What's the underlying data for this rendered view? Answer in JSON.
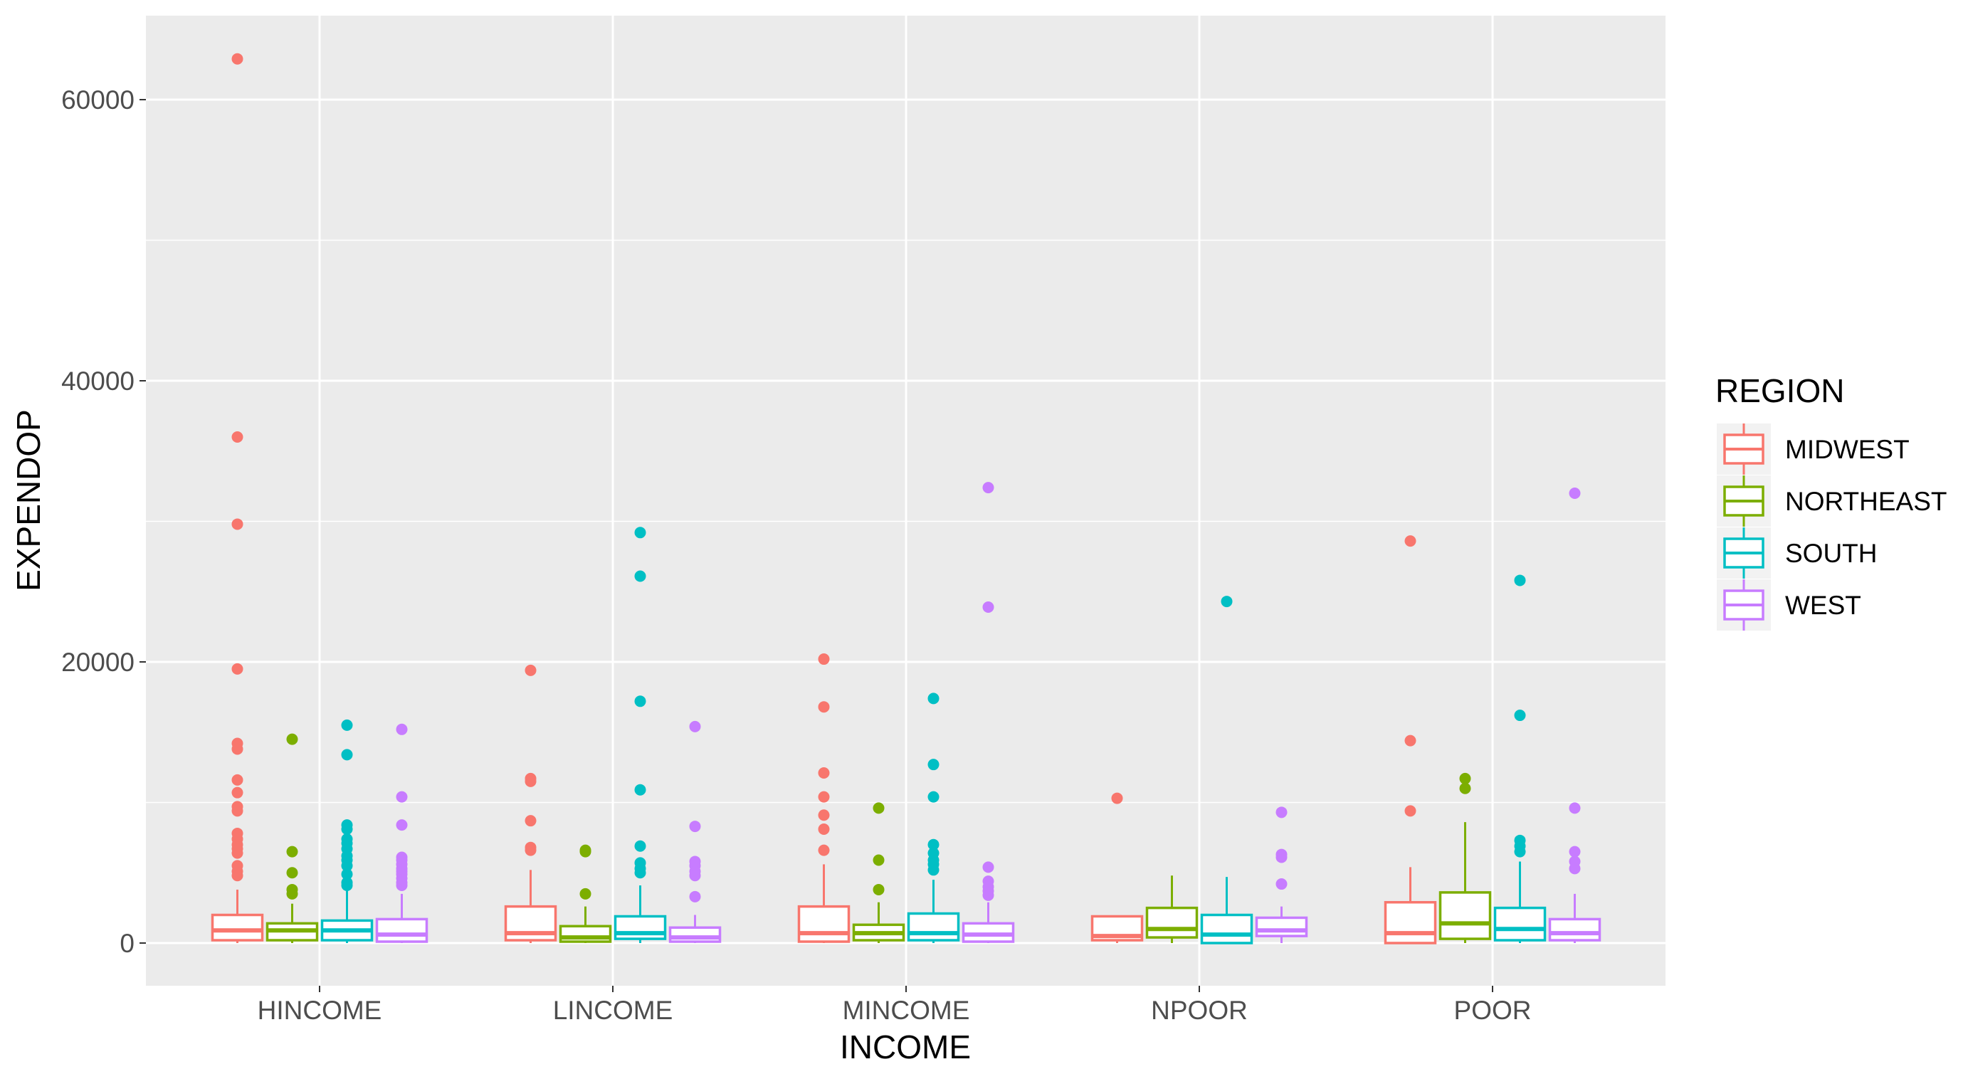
{
  "chart_data": {
    "type": "boxplot",
    "xlabel": "INCOME",
    "ylabel": "EXPENDOP",
    "ylim": [
      -3000,
      66000
    ],
    "yticks": [
      0,
      20000,
      40000,
      60000
    ],
    "ytick_labels": [
      "0",
      "20000",
      "40000",
      "60000"
    ],
    "categories": [
      "HINCOME",
      "LINCOME",
      "MINCOME",
      "NPOOR",
      "POOR"
    ],
    "legend": {
      "title": "REGION",
      "position": "right"
    },
    "grid": true,
    "series": [
      {
        "name": "MIDWEST",
        "color": "#F8766D",
        "boxes": [
          {
            "q1": 200,
            "median": 900,
            "q3": 2000,
            "lower": 0,
            "upper": 3800,
            "outliers": [
              62900,
              36000,
              29800,
              19500,
              14200,
              13800,
              11600,
              10700,
              9700,
              9400,
              7800,
              7400,
              7000,
              6700,
              6400,
              5500,
              5100,
              4800
            ]
          },
          {
            "q1": 200,
            "median": 700,
            "q3": 2600,
            "lower": 0,
            "upper": 5200,
            "outliers": [
              19400,
              11700,
              11500,
              8700,
              6800,
              6600
            ]
          },
          {
            "q1": 100,
            "median": 700,
            "q3": 2600,
            "lower": 0,
            "upper": 5600,
            "outliers": [
              20200,
              16800,
              12100,
              10400,
              9100,
              8100,
              6600
            ]
          },
          {
            "q1": 200,
            "median": 500,
            "q3": 1900,
            "lower": 0,
            "upper": 1900,
            "outliers": [
              10300
            ]
          },
          {
            "q1": 0,
            "median": 700,
            "q3": 2900,
            "lower": 0,
            "upper": 5400,
            "outliers": [
              28600,
              14400,
              9400
            ]
          }
        ]
      },
      {
        "name": "NORTHEAST",
        "color": "#7CAE00",
        "boxes": [
          {
            "q1": 200,
            "median": 900,
            "q3": 1400,
            "lower": 0,
            "upper": 2800,
            "outliers": [
              14500,
              6500,
              5000,
              3800,
              3500
            ]
          },
          {
            "q1": 100,
            "median": 400,
            "q3": 1200,
            "lower": 0,
            "upper": 2600,
            "outliers": [
              6600,
              6500,
              3500
            ]
          },
          {
            "q1": 200,
            "median": 700,
            "q3": 1300,
            "lower": 0,
            "upper": 2900,
            "outliers": [
              9600,
              5900,
              3800
            ]
          },
          {
            "q1": 400,
            "median": 1000,
            "q3": 2500,
            "lower": 0,
            "upper": 4800,
            "outliers": []
          },
          {
            "q1": 300,
            "median": 1400,
            "q3": 3600,
            "lower": 0,
            "upper": 8600,
            "outliers": [
              11700,
              11000
            ]
          }
        ]
      },
      {
        "name": "SOUTH",
        "color": "#00BFC4",
        "boxes": [
          {
            "q1": 200,
            "median": 900,
            "q3": 1600,
            "lower": 0,
            "upper": 3900,
            "outliers": [
              15500,
              13400,
              8400,
              8100,
              7400,
              7100,
              6700,
              6200,
              5900,
              5500,
              4900,
              4300,
              4100
            ]
          },
          {
            "q1": 300,
            "median": 700,
            "q3": 1900,
            "lower": 0,
            "upper": 4100,
            "outliers": [
              29200,
              26100,
              17200,
              10900,
              6900,
              5700,
              5300,
              5000
            ]
          },
          {
            "q1": 200,
            "median": 700,
            "q3": 2100,
            "lower": 0,
            "upper": 4500,
            "outliers": [
              17400,
              12700,
              10400,
              7000,
              6400,
              5900,
              5600,
              5200
            ]
          },
          {
            "q1": 0,
            "median": 600,
            "q3": 2000,
            "lower": 0,
            "upper": 4700,
            "outliers": [
              24300
            ]
          },
          {
            "q1": 200,
            "median": 1000,
            "q3": 2500,
            "lower": 0,
            "upper": 5800,
            "outliers": [
              25800,
              16200,
              7300,
              6900,
              6500
            ]
          }
        ]
      },
      {
        "name": "WEST",
        "color": "#C77CFF",
        "boxes": [
          {
            "q1": 100,
            "median": 600,
            "q3": 1700,
            "lower": 0,
            "upper": 3500,
            "outliers": [
              15200,
              10400,
              8400,
              6100,
              5900,
              5600,
              5300,
              5100,
              4900,
              4600,
              4300,
              4100
            ]
          },
          {
            "q1": 100,
            "median": 400,
            "q3": 1100,
            "lower": 0,
            "upper": 2000,
            "outliers": [
              15400,
              8300,
              5800,
              5500,
              5100,
              4800,
              3300
            ]
          },
          {
            "q1": 100,
            "median": 600,
            "q3": 1400,
            "lower": 0,
            "upper": 2900,
            "outliers": [
              32400,
              23900,
              5400,
              4400,
              4000,
              3700,
              3400
            ]
          },
          {
            "q1": 500,
            "median": 900,
            "q3": 1800,
            "lower": 0,
            "upper": 2600,
            "outliers": [
              9300,
              6300,
              6100,
              4200
            ]
          },
          {
            "q1": 200,
            "median": 700,
            "q3": 1700,
            "lower": 0,
            "upper": 3500,
            "outliers": [
              32000,
              9600,
              6500,
              5800,
              5300
            ]
          }
        ]
      }
    ]
  }
}
